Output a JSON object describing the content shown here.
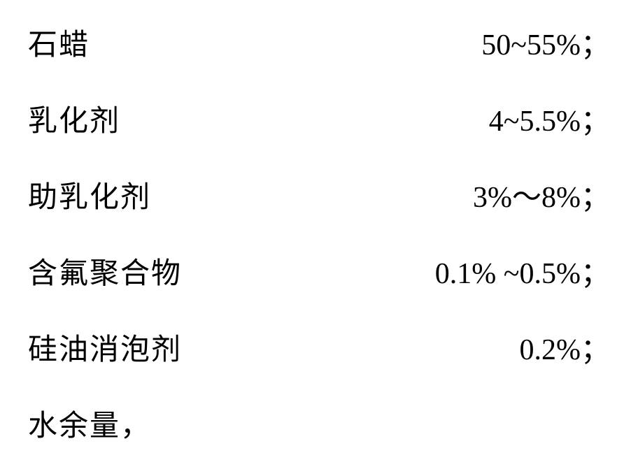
{
  "composition": {
    "rows": [
      {
        "label": "石蜡",
        "value": "50~55%；"
      },
      {
        "label": "乳化剂",
        "value": "4~5.5%；"
      },
      {
        "label": "助乳化剂",
        "value": "3%～8%；"
      },
      {
        "label": "含氟聚合物",
        "value": "0.1% ~0.5%；"
      },
      {
        "label": "硅油消泡剂",
        "value": "0.2%；"
      }
    ],
    "last_row": {
      "label": "水余量，"
    }
  },
  "styling": {
    "background_color": "#ffffff",
    "text_color": "#000000",
    "font_size": 42,
    "row_spacing": 48,
    "font_family_cjk": "SimSun",
    "font_family_latin": "Times New Roman"
  }
}
